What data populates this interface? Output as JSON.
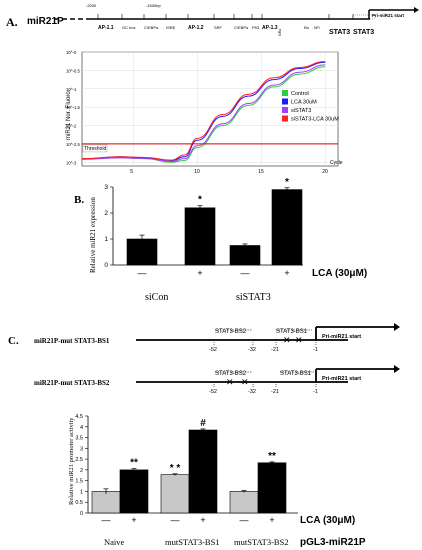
{
  "panel_a": {
    "letter": "A.",
    "gene": "miR21P",
    "top_ticks": [
      "-2000",
      "-1500bp"
    ],
    "sites": [
      "AP-1.1",
      "GC box",
      "C/EBPα",
      "ISRE",
      "AP-1.2",
      "SRF",
      "C/EBPα",
      "P53",
      "AP-1.3",
      "STAT3",
      "STAT3"
    ],
    "small_sites": [
      "GRa",
      "Ets",
      "NFI"
    ],
    "pri_label": "Pri-miR21 start",
    "chart_data": {
      "type": "line",
      "ylabel": "miR21 Nor. Fluoro.",
      "xlabel": "Cycle",
      "x_ticks": [
        5,
        10,
        15,
        20
      ],
      "y_ticks": [
        "10^-0",
        "10^-0.5",
        "10^-1",
        "10^-1.5",
        "10^-2",
        "10^-2.5",
        "10^-3"
      ],
      "threshold_label": "Threshold",
      "legend": [
        "Control",
        "LCA 30uM",
        "siSTAT3",
        "siSTAT3-LCA 30uM"
      ],
      "colors": [
        "#2ecc40",
        "#1a1aff",
        "#a040ff",
        "#ff2020"
      ],
      "series": [
        {
          "name": "Control",
          "x": [
            1,
            4,
            6,
            8,
            9,
            10,
            12,
            14,
            16,
            18,
            20
          ],
          "y": [
            -2.9,
            -2.88,
            -2.9,
            -3.0,
            -2.95,
            -2.6,
            -2.0,
            -1.45,
            -0.95,
            -0.6,
            -0.4
          ]
        },
        {
          "name": "LCA 30uM",
          "x": [
            1,
            4,
            6,
            8,
            9,
            10,
            12,
            14,
            16,
            18,
            20
          ],
          "y": [
            -2.9,
            -2.85,
            -2.88,
            -2.95,
            -2.85,
            -2.4,
            -1.75,
            -1.2,
            -0.75,
            -0.45,
            -0.28
          ]
        },
        {
          "name": "siSTAT3",
          "x": [
            1,
            4,
            6,
            8,
            9,
            10,
            12,
            14,
            16,
            18,
            20
          ],
          "y": [
            -2.92,
            -2.88,
            -2.9,
            -2.98,
            -2.9,
            -2.55,
            -1.95,
            -1.4,
            -0.9,
            -0.55,
            -0.35
          ]
        },
        {
          "name": "siSTAT3-LCA 30uM",
          "x": [
            1,
            4,
            6,
            8,
            9,
            10,
            12,
            14,
            16,
            18,
            20
          ],
          "y": [
            -2.9,
            -2.85,
            -2.87,
            -2.94,
            -2.8,
            -2.35,
            -1.7,
            -1.15,
            -0.7,
            -0.42,
            -0.26
          ]
        }
      ],
      "threshold": -2.5,
      "xlim": [
        1,
        21
      ],
      "ylim": [
        -3.1,
        0
      ]
    }
  },
  "panel_b": {
    "letter": "B.",
    "lca_label": "LCA (30μM)",
    "groups": [
      "siCon",
      "siSTAT3"
    ],
    "chart_data": {
      "type": "bar",
      "ylabel": "Relative miR21 expression",
      "categories": [
        "siCon −",
        "siCon +",
        "siSTAT3 −",
        "siSTAT3 +"
      ],
      "values": [
        1.0,
        2.2,
        0.75,
        2.9
      ],
      "errors": [
        0.15,
        0.08,
        0.06,
        0.07
      ],
      "ylim": [
        0,
        3
      ],
      "stars": [
        "",
        "*",
        "",
        "*"
      ],
      "signs": [
        "—",
        "+",
        "—",
        "+"
      ]
    }
  },
  "panel_c": {
    "letter": "C.",
    "construct1": {
      "name": "miR21P-mut STAT3-BS1",
      "labels": [
        "STAT3-BS2",
        "STAT3-BS1"
      ],
      "ticks": [
        "-52",
        "-32",
        "-21",
        "-1"
      ],
      "pri_label": "Pri-miR21 start"
    },
    "construct2": {
      "name": "miR21P-mut STAT3-BS2",
      "labels": [
        "STAT3-BS2",
        "STAT3-BS1"
      ],
      "ticks": [
        "-52",
        "-32",
        "-21",
        "-1"
      ],
      "pri_label": "Pri-miR21 start"
    },
    "lca_label": "LCA (30μM)",
    "pgl3_label": "pGL3-miR21P",
    "groups": [
      "Naive",
      "mutSTAT3-BS1",
      "mutSTAT3-BS2"
    ],
    "chart_data": {
      "type": "bar",
      "ylabel": "Relative miR21 promoter activity",
      "y_ticks": [
        "0",
        "0.5",
        "1",
        "1.5",
        "2",
        "2.5",
        "3",
        "3.5",
        "4",
        "4.5"
      ],
      "categories": [
        "Naive −",
        "Naive +",
        "mutSTAT3-BS1 −",
        "mutSTAT3-BS1 +",
        "mutSTAT3-BS2 −",
        "mutSTAT3-BS2 +"
      ],
      "values": [
        1.0,
        2.0,
        1.78,
        3.85,
        1.0,
        2.33
      ],
      "errors": [
        0.12,
        0.06,
        0.04,
        0.05,
        0.05,
        0.04
      ],
      "ylim": [
        0,
        4.5
      ],
      "stars": [
        "",
        "**",
        "* *",
        "#",
        "",
        "**"
      ],
      "signs": [
        "—",
        "+",
        "—",
        "+",
        "—",
        "+"
      ],
      "colors": [
        "#c8c8c8",
        "#000000"
      ]
    }
  }
}
